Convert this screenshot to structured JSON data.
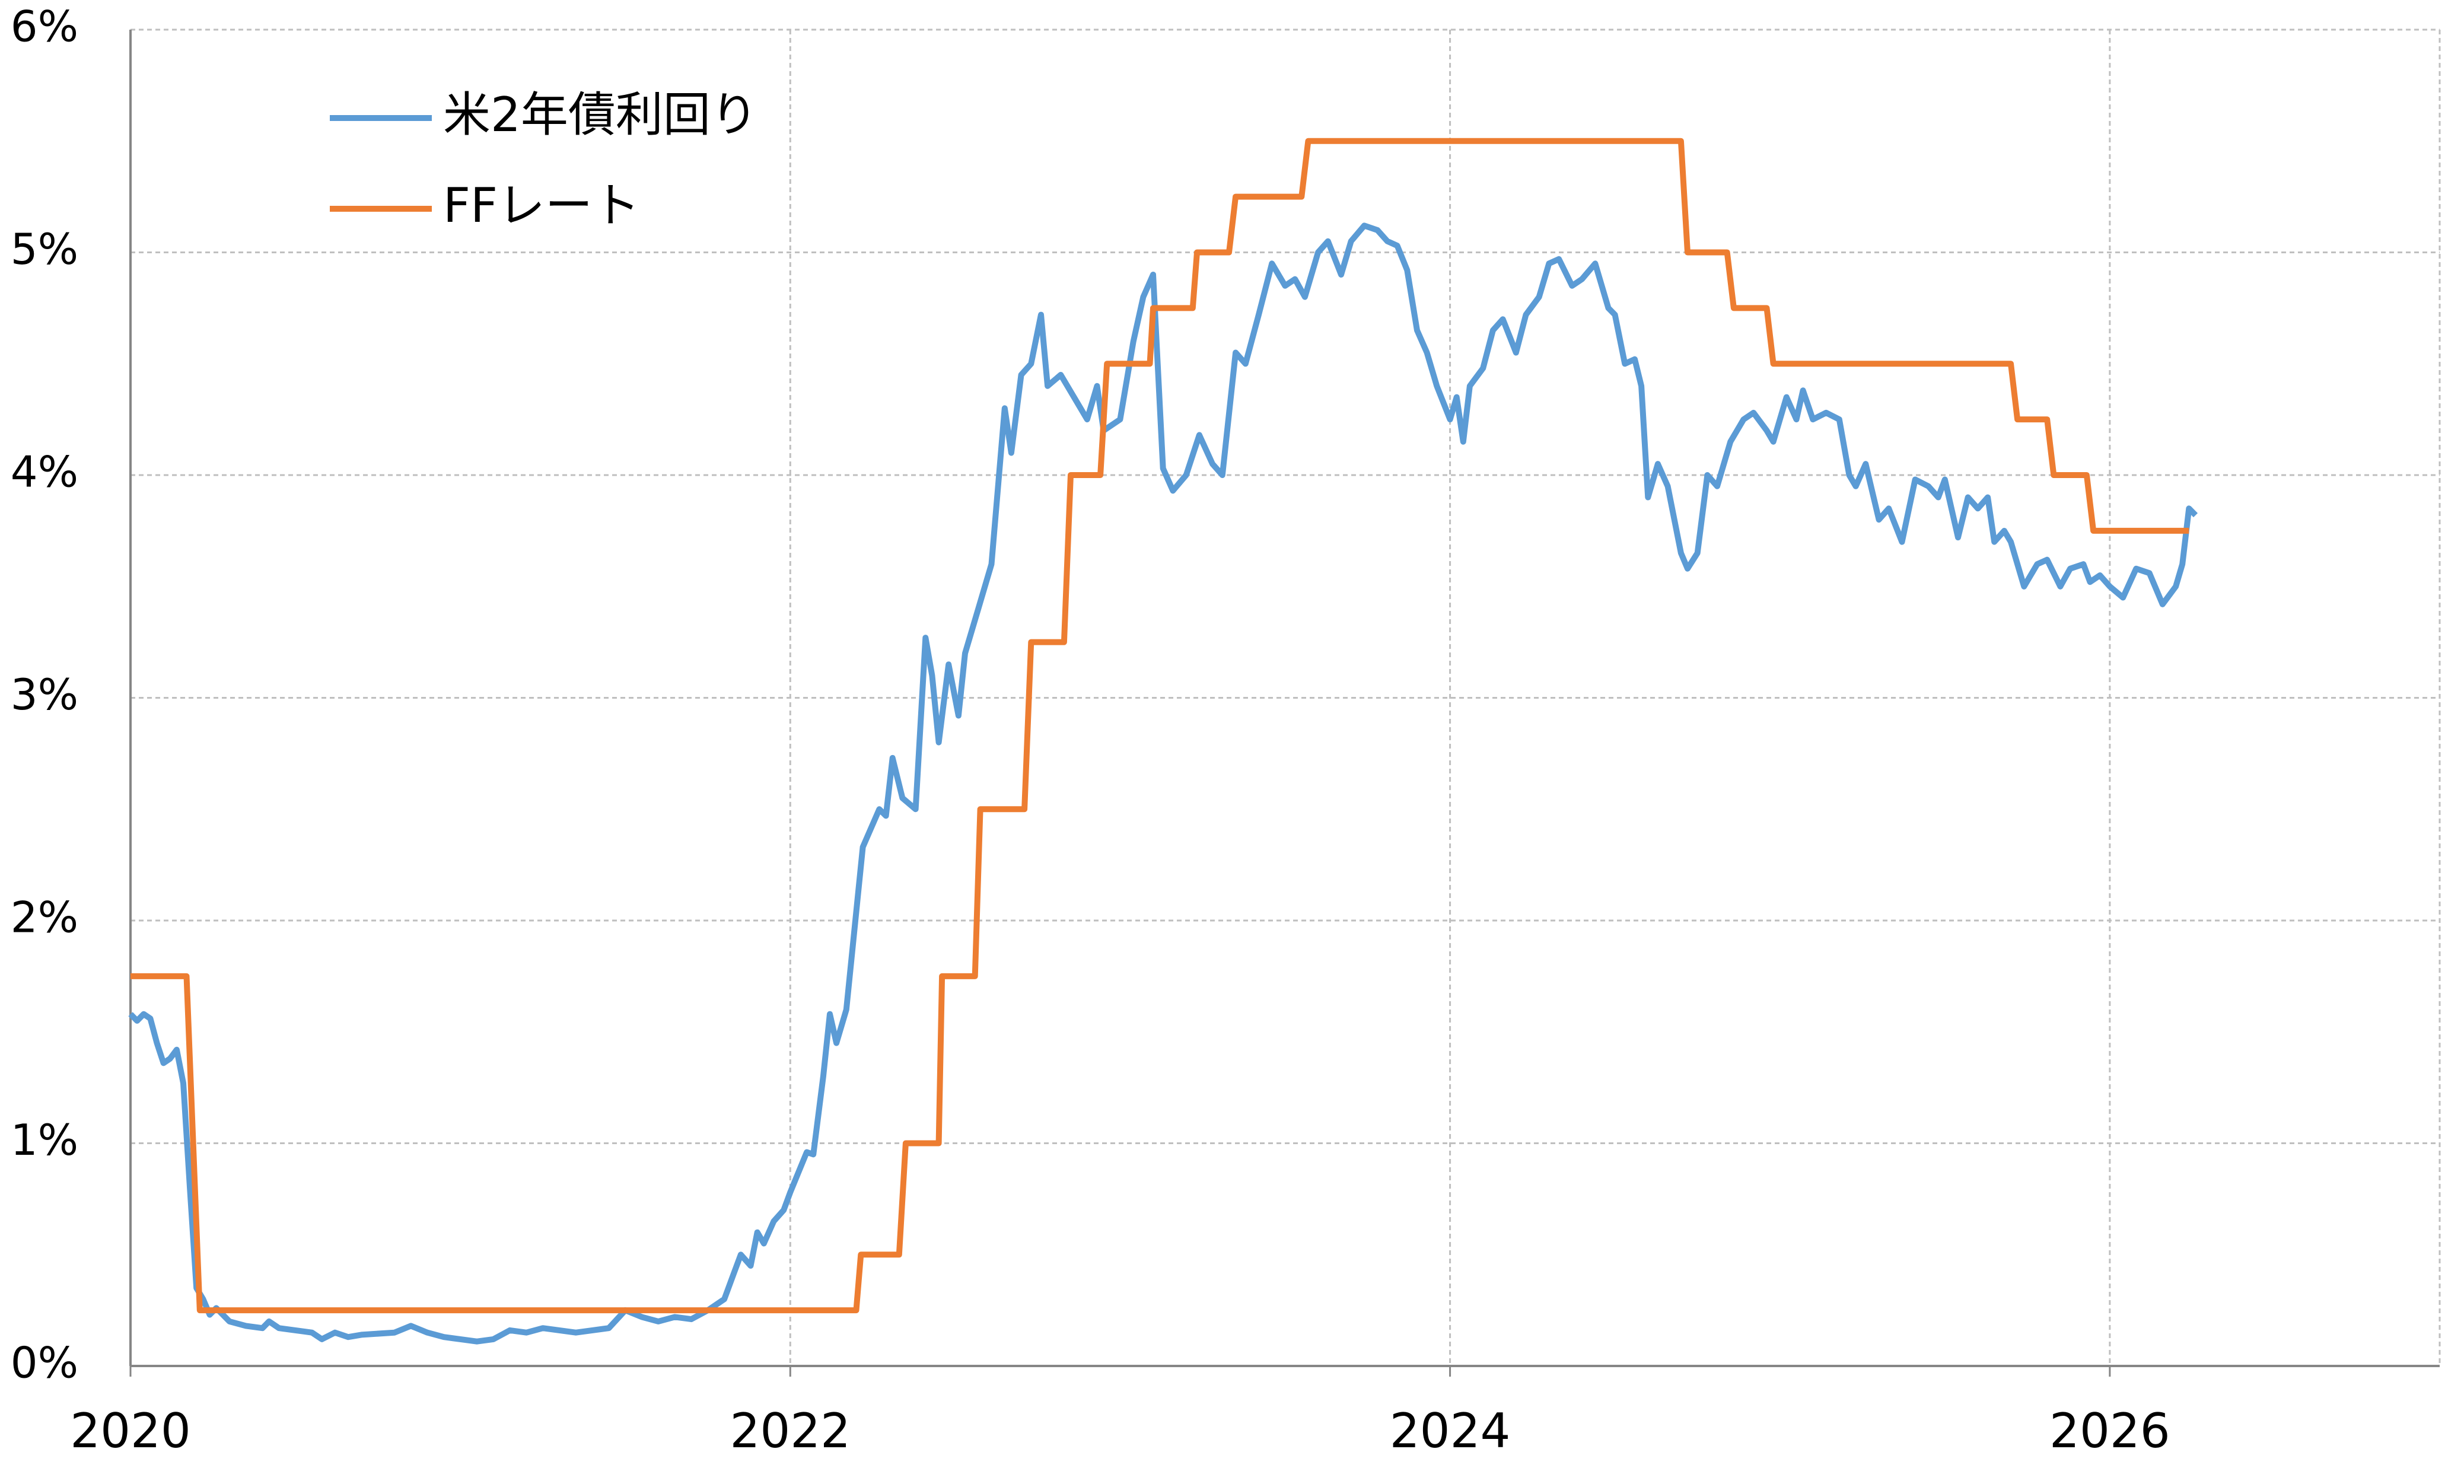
{
  "chart_data": {
    "type": "line",
    "xlim": [
      2020,
      2027
    ],
    "xticks": [
      2020,
      2022,
      2024,
      2026
    ],
    "ylim": [
      0,
      6
    ],
    "yticks": [
      {
        "value": 0,
        "label": "0%"
      },
      {
        "value": 1,
        "label": "1%"
      },
      {
        "value": 2,
        "label": "2%"
      },
      {
        "value": 3,
        "label": "3%"
      },
      {
        "value": 4,
        "label": "4%"
      },
      {
        "value": 5,
        "label": "5%"
      },
      {
        "value": 6,
        "label": "6%"
      }
    ],
    "grid": true,
    "legend": "top-left",
    "series": [
      {
        "name": "米2年債利回り",
        "color": "#5b9bd5",
        "x": [
          2020.0,
          2020.02,
          2020.04,
          2020.06,
          2020.08,
          2020.1,
          2020.12,
          2020.14,
          2020.16,
          2020.18,
          2020.2,
          2020.22,
          2020.24,
          2020.26,
          2020.3,
          2020.35,
          2020.4,
          2020.42,
          2020.45,
          2020.5,
          2020.55,
          2020.58,
          2020.62,
          2020.66,
          2020.7,
          2020.8,
          2020.85,
          2020.9,
          2020.95,
          2021.0,
          2021.05,
          2021.1,
          2021.15,
          2021.2,
          2021.25,
          2021.3,
          2021.35,
          2021.4,
          2021.45,
          2021.5,
          2021.55,
          2021.6,
          2021.65,
          2021.7,
          2021.75,
          2021.8,
          2021.83,
          2021.85,
          2021.88,
          2021.9,
          2021.92,
          2021.95,
          2021.98,
          2022.0,
          2022.05,
          2022.07,
          2022.1,
          2022.12,
          2022.14,
          2022.17,
          2022.22,
          2022.27,
          2022.29,
          2022.31,
          2022.34,
          2022.38,
          2022.41,
          2022.43,
          2022.45,
          2022.48,
          2022.51,
          2022.53,
          2022.57,
          2022.61,
          2022.65,
          2022.67,
          2022.7,
          2022.73,
          2022.76,
          2022.78,
          2022.82,
          2022.86,
          2022.9,
          2022.93,
          2022.95,
          2023.0,
          2023.04,
          2023.07,
          2023.1,
          2023.13,
          2023.16,
          2023.2,
          2023.24,
          2023.28,
          2023.31,
          2023.35,
          2023.38,
          2023.42,
          2023.46,
          2023.5,
          2023.53,
          2023.56,
          2023.6,
          2023.63,
          2023.67,
          2023.7,
          2023.74,
          2023.78,
          2023.81,
          2023.84,
          2023.87,
          2023.9,
          2023.93,
          2023.96,
          2024.0,
          2024.02,
          2024.04,
          2024.06,
          2024.1,
          2024.13,
          2024.16,
          2024.2,
          2024.23,
          2024.27,
          2024.3,
          2024.33,
          2024.37,
          2024.4,
          2024.44,
          2024.48,
          2024.5,
          2024.53,
          2024.56,
          2024.58,
          2024.6,
          2024.63,
          2024.66,
          2024.7,
          2024.72,
          2024.75,
          2024.78,
          2024.81,
          2024.85,
          2024.89,
          2024.92,
          2024.96,
          2024.98,
          2025.02,
          2025.05,
          2025.07,
          2025.1,
          2025.14,
          2025.18,
          2025.21,
          2025.23,
          2025.26,
          2025.3,
          2025.33,
          2025.37,
          2025.41,
          2025.45,
          2025.48,
          2025.5,
          2025.54,
          2025.57,
          2025.6,
          2025.63,
          2025.65,
          2025.68,
          2025.7,
          2025.74,
          2025.78,
          2025.81,
          2025.85,
          2025.88,
          2025.92,
          2025.94,
          2025.97,
          2026.0,
          2026.04,
          2026.08,
          2026.12,
          2026.16,
          2026.2,
          2026.22,
          2026.24,
          2026.26
        ],
        "values": [
          1.58,
          1.55,
          1.58,
          1.56,
          1.45,
          1.36,
          1.38,
          1.42,
          1.27,
          0.8,
          0.35,
          0.3,
          0.23,
          0.26,
          0.2,
          0.18,
          0.17,
          0.2,
          0.17,
          0.16,
          0.15,
          0.12,
          0.15,
          0.13,
          0.14,
          0.15,
          0.18,
          0.15,
          0.13,
          0.12,
          0.11,
          0.12,
          0.16,
          0.15,
          0.17,
          0.16,
          0.15,
          0.16,
          0.17,
          0.25,
          0.22,
          0.2,
          0.22,
          0.21,
          0.25,
          0.3,
          0.42,
          0.5,
          0.45,
          0.6,
          0.55,
          0.65,
          0.7,
          0.78,
          0.96,
          0.95,
          1.3,
          1.58,
          1.45,
          1.6,
          2.33,
          2.5,
          2.47,
          2.73,
          2.55,
          2.5,
          3.27,
          3.1,
          2.8,
          3.15,
          2.92,
          3.2,
          3.4,
          3.6,
          4.3,
          4.1,
          4.45,
          4.5,
          4.72,
          4.4,
          4.45,
          4.35,
          4.25,
          4.4,
          4.2,
          4.25,
          4.6,
          4.8,
          4.9,
          4.03,
          3.93,
          4.0,
          4.18,
          4.05,
          4.0,
          4.55,
          4.5,
          4.72,
          4.95,
          4.85,
          4.88,
          4.8,
          5.0,
          5.05,
          4.9,
          5.05,
          5.12,
          5.1,
          5.05,
          5.03,
          4.92,
          4.65,
          4.55,
          4.4,
          4.25,
          4.35,
          4.15,
          4.4,
          4.48,
          4.65,
          4.7,
          4.55,
          4.72,
          4.8,
          4.95,
          4.97,
          4.85,
          4.88,
          4.95,
          4.75,
          4.72,
          4.5,
          4.52,
          4.4,
          3.9,
          4.05,
          3.95,
          3.65,
          3.58,
          3.65,
          4.0,
          3.95,
          4.15,
          4.25,
          4.28,
          4.2,
          4.15,
          4.35,
          4.25,
          4.38,
          4.25,
          4.28,
          4.25,
          4.0,
          3.95,
          4.05,
          3.8,
          3.85,
          3.7,
          3.98,
          3.95,
          3.9,
          3.98,
          3.72,
          3.9,
          3.85,
          3.9,
          3.7,
          3.75,
          3.7,
          3.5,
          3.6,
          3.62,
          3.5,
          3.58,
          3.6,
          3.52,
          3.55,
          3.5,
          3.45,
          3.58,
          3.56,
          3.42,
          3.5,
          3.6,
          3.85,
          3.82
        ]
      },
      {
        "name": "FFレート",
        "color": "#ed7d31",
        "x": [
          2020.0,
          2020.17,
          2020.21,
          2022.2,
          2022.214,
          2022.33,
          2022.35,
          2022.45,
          2022.46,
          2022.56,
          2022.576,
          2022.71,
          2022.73,
          2022.83,
          2022.85,
          2022.94,
          2022.96,
          2023.09,
          2023.1,
          2023.22,
          2023.233,
          2023.33,
          2023.35,
          2023.55,
          2023.57,
          2024.7,
          2024.72,
          2024.84,
          2024.86,
          2024.96,
          2024.98,
          2025.7,
          2025.72,
          2025.81,
          2025.83,
          2025.93,
          2025.95,
          2026.24
        ],
        "values": [
          1.75,
          1.75,
          0.25,
          0.25,
          0.5,
          0.5,
          1.0,
          1.0,
          1.75,
          1.75,
          2.5,
          2.5,
          3.25,
          3.25,
          4.0,
          4.0,
          4.5,
          4.5,
          4.75,
          4.75,
          5.0,
          5.0,
          5.25,
          5.25,
          5.5,
          5.5,
          5.0,
          5.0,
          4.75,
          4.75,
          4.5,
          4.5,
          4.25,
          4.25,
          4.0,
          4.0,
          3.75,
          3.75
        ]
      }
    ]
  }
}
